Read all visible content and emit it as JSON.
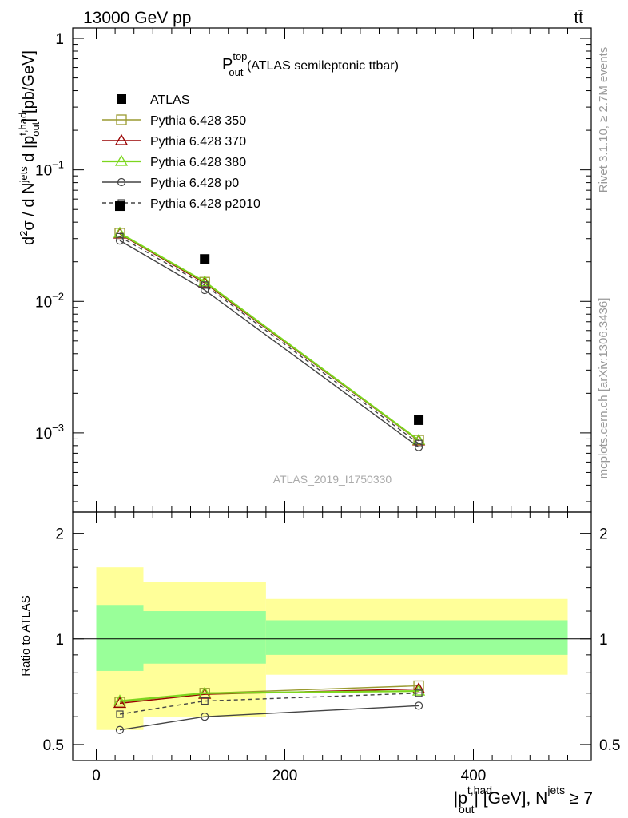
{
  "header": {
    "energy_label": "13000 GeV pp",
    "process_label": "tt̄"
  },
  "side_labels": {
    "rivet": "Rivet 3.1.10, ≥ 2.7M events",
    "source": "mcplots.cern.ch [arXiv:1306.3436]"
  },
  "chart_data": [
    {
      "type": "scatter",
      "panel": "main",
      "title": {
        "main": "P",
        "sup": "top",
        "sub": "out",
        "rest": " (ATLAS semileptonic ttbar)"
      },
      "ylabel": "d²σ / d Nʲᵉᵗˢ d |pᵒᵘᵗᵗʰᵃᵈ| [pb/GeV]",
      "ylabel_parts": {
        "a": "d",
        "a_sup": "2",
        "b": "σ / d N",
        "b_sup": "jets",
        "c": " d |p",
        "c_sup": "t,had",
        "c_sub": "out",
        "d": "| [pb/GeV]"
      },
      "yscale": "log",
      "ylim": [
        0.00025,
        1.2
      ],
      "xlim": [
        -25,
        525
      ],
      "y_ticks": [
        {
          "base": "1",
          "exp": ""
        },
        {
          "base": "10",
          "exp": "−1"
        },
        {
          "base": "10",
          "exp": "−2"
        },
        {
          "base": "10",
          "exp": "−3"
        }
      ],
      "watermark": "ATLAS_2019_I1750330",
      "legend_position": "top-left",
      "series": [
        {
          "name": "ATLAS",
          "marker": "square-filled",
          "color": "#000000",
          "x": [
            25,
            115,
            342
          ],
          "y": [
            0.053,
            0.021,
            0.00125
          ]
        },
        {
          "name": "Pythia 6.428 350",
          "marker": "square-open",
          "color": "#9a9a30",
          "x": [
            25,
            115,
            342
          ],
          "y": [
            0.033,
            0.014,
            0.00088
          ]
        },
        {
          "name": "Pythia 6.428 370",
          "marker": "triangle-open",
          "color": "#990000",
          "x": [
            25,
            115,
            342
          ],
          "y": [
            0.0325,
            0.0138,
            0.00087
          ]
        },
        {
          "name": "Pythia 6.428 380",
          "marker": "triangle-open",
          "color": "#7cd61e",
          "x": [
            25,
            115,
            342
          ],
          "y": [
            0.033,
            0.0141,
            0.00088
          ]
        },
        {
          "name": "Pythia 6.428 p0",
          "marker": "circle-open",
          "color": "#444444",
          "x": [
            25,
            115,
            342
          ],
          "y": [
            0.029,
            0.0122,
            0.00078
          ]
        },
        {
          "name": "Pythia 6.428 p2010",
          "marker": "square-open-small",
          "dashed": true,
          "color": "#444444",
          "x": [
            25,
            115,
            342
          ],
          "y": [
            0.031,
            0.0133,
            0.00083
          ]
        }
      ]
    },
    {
      "type": "line",
      "panel": "ratio",
      "ylabel": "Ratio to ATLAS",
      "yscale": "log",
      "ylim": [
        0.45,
        2.3
      ],
      "xlim": [
        -25,
        525
      ],
      "y_ticks": [
        "2",
        "1",
        "0.5"
      ],
      "x_ticks": [
        "0",
        "200",
        "400"
      ],
      "xlabel_parts": {
        "a": "|p",
        "a_sup": "t,had",
        "a_sub": "out",
        "b": "| [GeV], N",
        "b_sup": "jets",
        "c": " ≥ 7"
      },
      "bands": [
        {
          "x0": 0,
          "x1": 50,
          "yellow": [
            0.55,
            1.6
          ],
          "green": [
            0.81,
            1.25
          ]
        },
        {
          "x0": 50,
          "x1": 180,
          "yellow": [
            0.6,
            1.45
          ],
          "green": [
            0.85,
            1.2
          ]
        },
        {
          "x0": 180,
          "x1": 500,
          "yellow": [
            0.79,
            1.3
          ],
          "green": [
            0.9,
            1.13
          ]
        }
      ],
      "series": [
        {
          "name": "Pythia 6.428 350",
          "x": [
            25,
            115,
            342
          ],
          "y": [
            0.66,
            0.7,
            0.735
          ]
        },
        {
          "name": "Pythia 6.428 370",
          "x": [
            25,
            115,
            342
          ],
          "y": [
            0.655,
            0.695,
            0.72
          ]
        },
        {
          "name": "Pythia 6.428 380",
          "x": [
            25,
            115,
            342
          ],
          "y": [
            0.665,
            0.7,
            0.71
          ]
        },
        {
          "name": "Pythia 6.428 p0",
          "x": [
            25,
            115,
            342
          ],
          "y": [
            0.55,
            0.6,
            0.645
          ]
        },
        {
          "name": "Pythia 6.428 p2010",
          "x": [
            25,
            115,
            342
          ],
          "y": [
            0.61,
            0.665,
            0.7
          ]
        }
      ]
    }
  ]
}
